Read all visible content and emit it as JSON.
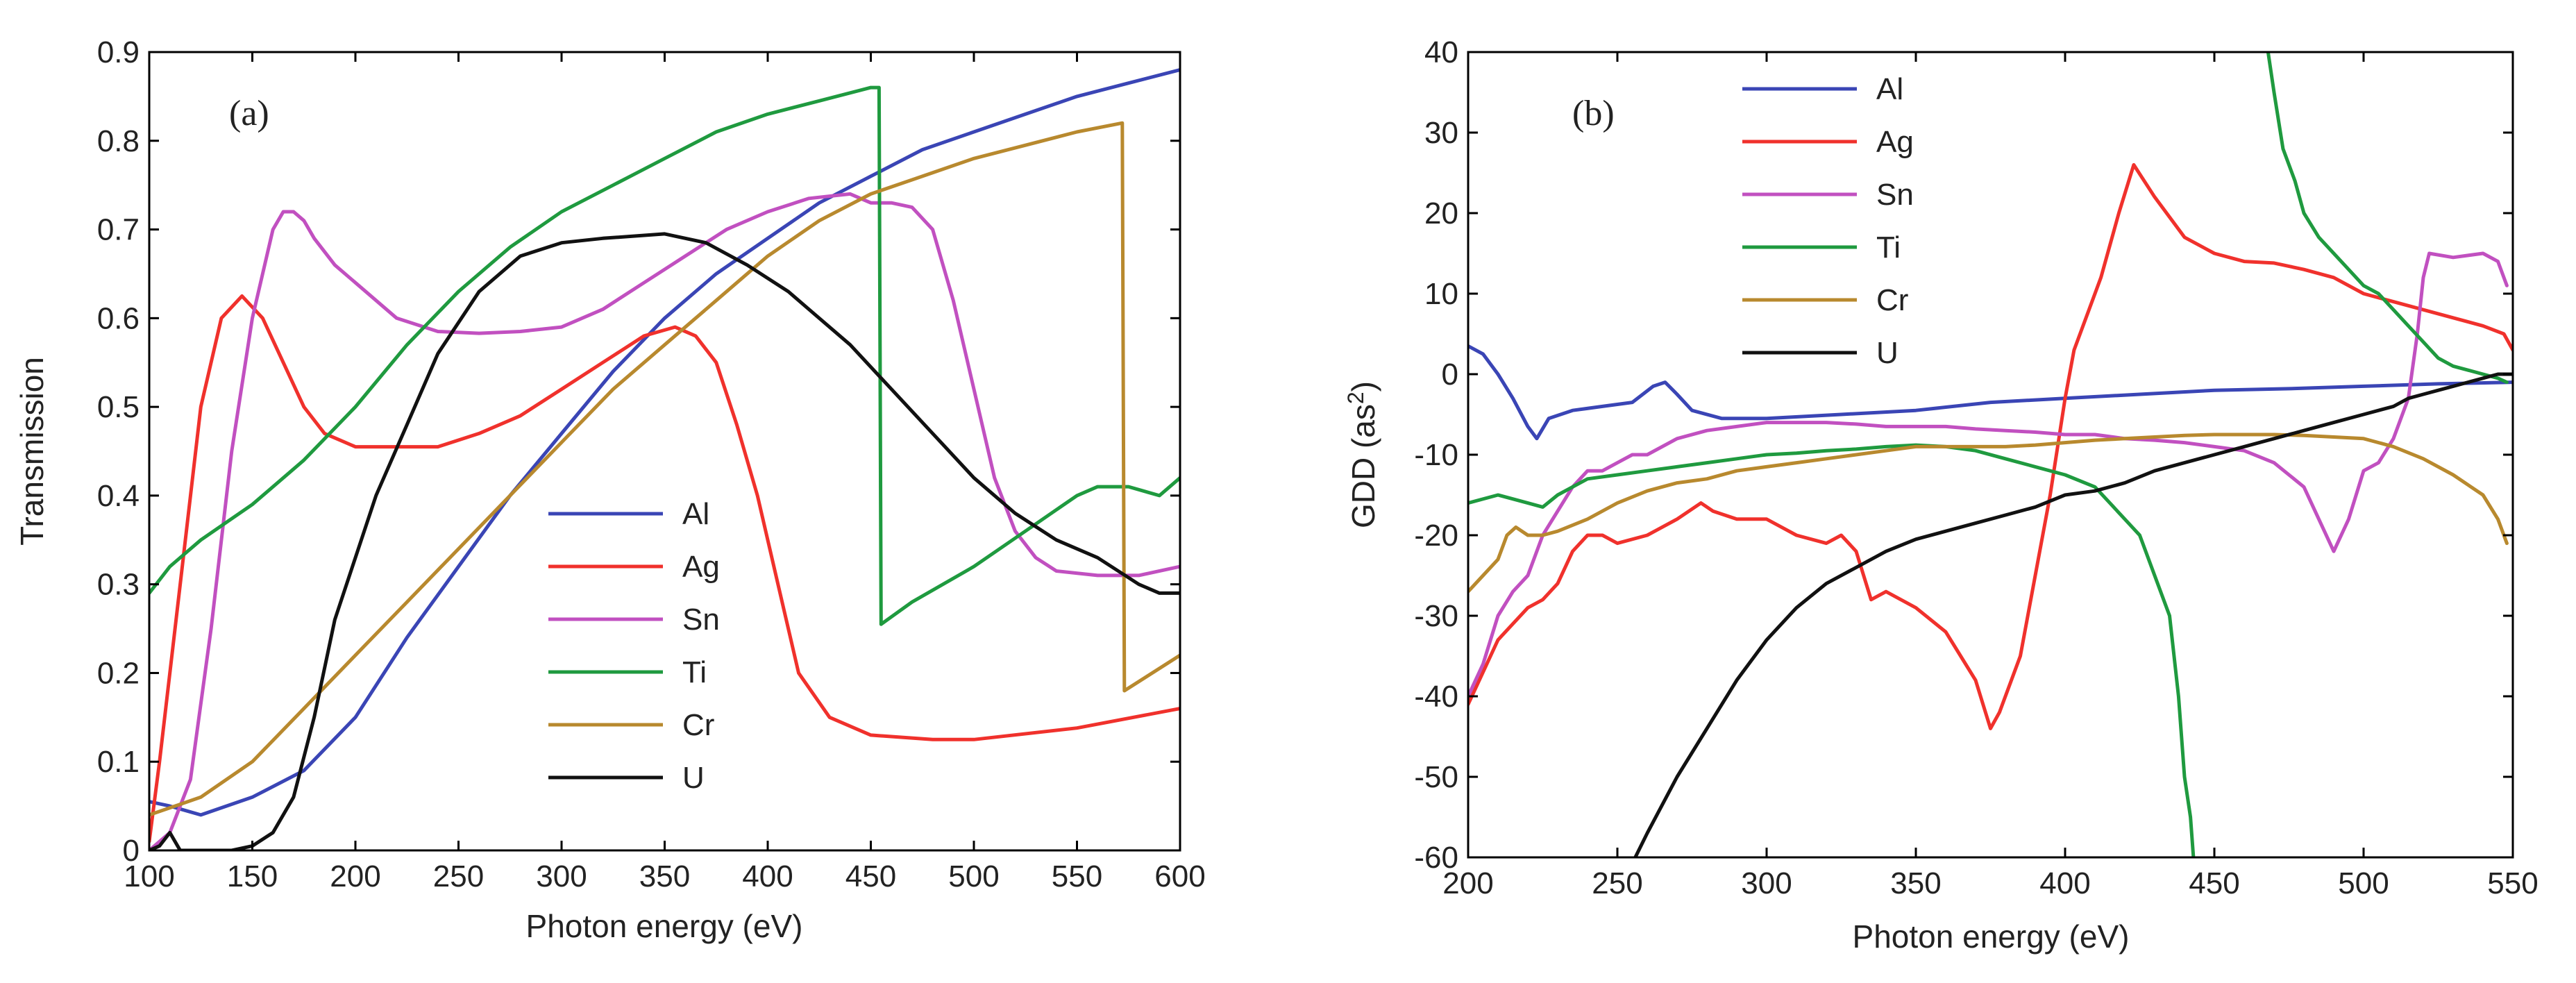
{
  "colors": {
    "Al": "#3a45b5",
    "Ag": "#f0312c",
    "Sn": "#c150c0",
    "Ti": "#1f9a3f",
    "Cr": "#b8892e",
    "U": "#111111"
  },
  "chart_data": [
    {
      "type": "line",
      "panel_label": "(a)",
      "xlabel": "Photon energy (eV)",
      "ylabel": "Transmission",
      "xlim": [
        100,
        600
      ],
      "ylim": [
        0,
        0.9
      ],
      "xticks": [
        "100",
        "150",
        "200",
        "250",
        "300",
        "350",
        "400",
        "450",
        "500",
        "550",
        "600"
      ],
      "yticks": [
        "0",
        "0.1",
        "0.2",
        "0.3",
        "0.4",
        "0.5",
        "0.6",
        "0.7",
        "0.8",
        "0.9"
      ],
      "legend": [
        "Al",
        "Ag",
        "Sn",
        "Ti",
        "Cr",
        "U"
      ],
      "legend_position": "lower-center",
      "series": [
        {
          "name": "Al",
          "x": [
            100,
            110,
            125,
            150,
            175,
            200,
            225,
            250,
            275,
            300,
            325,
            350,
            375,
            400,
            425,
            450,
            475,
            500,
            525,
            550,
            575,
            600
          ],
          "y": [
            0.055,
            0.05,
            0.04,
            0.06,
            0.09,
            0.15,
            0.24,
            0.32,
            0.4,
            0.47,
            0.54,
            0.6,
            0.65,
            0.69,
            0.73,
            0.76,
            0.79,
            0.81,
            0.83,
            0.85,
            0.865,
            0.88
          ]
        },
        {
          "name": "Ag",
          "x": [
            100,
            105,
            115,
            125,
            135,
            145,
            155,
            165,
            175,
            185,
            200,
            210,
            220,
            230,
            240,
            260,
            280,
            300,
            320,
            340,
            355,
            365,
            375,
            385,
            395,
            405,
            415,
            430,
            450,
            480,
            500,
            550,
            600
          ],
          "y": [
            0.01,
            0.1,
            0.3,
            0.5,
            0.6,
            0.625,
            0.6,
            0.55,
            0.5,
            0.47,
            0.455,
            0.455,
            0.455,
            0.455,
            0.455,
            0.47,
            0.49,
            0.52,
            0.55,
            0.58,
            0.59,
            0.58,
            0.55,
            0.48,
            0.4,
            0.3,
            0.2,
            0.15,
            0.13,
            0.125,
            0.125,
            0.138,
            0.16
          ]
        },
        {
          "name": "Sn",
          "x": [
            100,
            110,
            120,
            130,
            140,
            150,
            160,
            165,
            170,
            175,
            180,
            190,
            200,
            220,
            240,
            260,
            280,
            300,
            320,
            340,
            360,
            380,
            400,
            420,
            440,
            450,
            460,
            470,
            480,
            490,
            500,
            510,
            520,
            530,
            540,
            560,
            580,
            600
          ],
          "y": [
            0.0,
            0.02,
            0.08,
            0.25,
            0.45,
            0.6,
            0.7,
            0.72,
            0.72,
            0.71,
            0.69,
            0.66,
            0.64,
            0.6,
            0.585,
            0.583,
            0.585,
            0.59,
            0.61,
            0.64,
            0.67,
            0.7,
            0.72,
            0.735,
            0.74,
            0.73,
            0.73,
            0.725,
            0.7,
            0.62,
            0.52,
            0.42,
            0.36,
            0.33,
            0.315,
            0.31,
            0.31,
            0.32
          ]
        },
        {
          "name": "Ti",
          "x": [
            100,
            110,
            125,
            150,
            175,
            200,
            225,
            250,
            275,
            300,
            325,
            350,
            375,
            400,
            425,
            450,
            454,
            455,
            470,
            500,
            525,
            550,
            560,
            575,
            590,
            600
          ],
          "y": [
            0.29,
            0.32,
            0.35,
            0.39,
            0.44,
            0.5,
            0.57,
            0.63,
            0.68,
            0.72,
            0.75,
            0.78,
            0.81,
            0.83,
            0.845,
            0.86,
            0.86,
            0.255,
            0.28,
            0.32,
            0.36,
            0.4,
            0.41,
            0.41,
            0.4,
            0.42
          ]
        },
        {
          "name": "Cr",
          "x": [
            100,
            125,
            150,
            175,
            200,
            225,
            250,
            275,
            300,
            325,
            350,
            375,
            400,
            425,
            450,
            475,
            500,
            525,
            550,
            572,
            573,
            600
          ],
          "y": [
            0.04,
            0.06,
            0.1,
            0.16,
            0.22,
            0.28,
            0.34,
            0.4,
            0.46,
            0.52,
            0.57,
            0.62,
            0.67,
            0.71,
            0.74,
            0.76,
            0.78,
            0.795,
            0.81,
            0.82,
            0.18,
            0.22
          ]
        },
        {
          "name": "U",
          "x": [
            100,
            105,
            110,
            115,
            120,
            140,
            150,
            160,
            170,
            180,
            190,
            200,
            210,
            225,
            240,
            260,
            280,
            300,
            320,
            350,
            370,
            390,
            410,
            420,
            440,
            460,
            480,
            500,
            520,
            540,
            560,
            580,
            590,
            600
          ],
          "y": [
            0.0,
            0.005,
            0.02,
            0.0,
            0.0,
            0.0,
            0.005,
            0.02,
            0.06,
            0.15,
            0.26,
            0.33,
            0.4,
            0.48,
            0.56,
            0.63,
            0.67,
            0.685,
            0.69,
            0.695,
            0.685,
            0.66,
            0.63,
            0.61,
            0.57,
            0.52,
            0.47,
            0.42,
            0.38,
            0.35,
            0.33,
            0.3,
            0.29,
            0.29
          ]
        }
      ]
    },
    {
      "type": "line",
      "panel_label": "(b)",
      "xlabel": "Photon energy (eV)",
      "ylabel_prefix": "GDD (as",
      "ylabel_sup": "2",
      "ylabel_suffix": ")",
      "xlim": [
        200,
        550
      ],
      "ylim": [
        -60,
        40
      ],
      "xticks": [
        "200",
        "250",
        "300",
        "350",
        "400",
        "450",
        "500",
        "550"
      ],
      "yticks": [
        "-60",
        "-50",
        "-40",
        "-30",
        "-20",
        "-10",
        "0",
        "10",
        "20",
        "30",
        "40"
      ],
      "legend": [
        "Al",
        "Ag",
        "Sn",
        "Ti",
        "Cr",
        "U"
      ],
      "legend_position": "upper-left",
      "series": [
        {
          "name": "Al",
          "x": [
            200,
            205,
            210,
            215,
            220,
            223,
            227,
            235,
            245,
            255,
            262,
            266,
            270,
            275,
            285,
            300,
            325,
            350,
            375,
            400,
            425,
            450,
            475,
            500,
            525,
            550
          ],
          "y": [
            3.5,
            2.5,
            0,
            -3,
            -6.5,
            -8,
            -5.5,
            -4.5,
            -4,
            -3.5,
            -1.5,
            -1,
            -2.5,
            -4.5,
            -5.5,
            -5.5,
            -5,
            -4.5,
            -3.5,
            -3,
            -2.5,
            -2,
            -1.8,
            -1.5,
            -1.2,
            -1
          ]
        },
        {
          "name": "Ag",
          "x": [
            200,
            205,
            210,
            215,
            220,
            225,
            230,
            235,
            240,
            245,
            250,
            260,
            270,
            278,
            282,
            290,
            300,
            310,
            320,
            325,
            330,
            335,
            340,
            350,
            360,
            365,
            370,
            375,
            378,
            385,
            390,
            395,
            400,
            403,
            408,
            412,
            418,
            423,
            430,
            440,
            450,
            460,
            470,
            480,
            490,
            500,
            510,
            520,
            530,
            540,
            547,
            550
          ],
          "y": [
            -41,
            -37,
            -33,
            -31,
            -29,
            -28,
            -26,
            -22,
            -20,
            -20,
            -21,
            -20,
            -18,
            -16,
            -17,
            -18,
            -18,
            -20,
            -21,
            -20,
            -22,
            -28,
            -27,
            -29,
            -32,
            -35,
            -38,
            -44,
            -42,
            -35,
            -25,
            -15,
            -3,
            3,
            8,
            12,
            20,
            26,
            22,
            17,
            15,
            14,
            13.8,
            13,
            12,
            10,
            9,
            8,
            7,
            6,
            5,
            3
          ]
        },
        {
          "name": "Sn",
          "x": [
            200,
            205,
            210,
            215,
            220,
            225,
            230,
            235,
            240,
            245,
            250,
            255,
            260,
            270,
            280,
            290,
            300,
            310,
            320,
            330,
            340,
            350,
            360,
            370,
            380,
            390,
            400,
            410,
            420,
            430,
            440,
            450,
            460,
            470,
            480,
            485,
            490,
            495,
            500,
            505,
            510,
            515,
            518,
            520,
            522,
            530,
            540,
            545,
            548
          ],
          "y": [
            -40,
            -36,
            -30,
            -27,
            -25,
            -20,
            -17,
            -14,
            -12,
            -12,
            -11,
            -10,
            -10,
            -8,
            -7,
            -6.5,
            -6,
            -6,
            -6,
            -6.2,
            -6.5,
            -6.5,
            -6.5,
            -6.8,
            -7,
            -7.2,
            -7.5,
            -7.5,
            -8,
            -8.2,
            -8.5,
            -9,
            -9.5,
            -11,
            -14,
            -18,
            -22,
            -18,
            -12,
            -11,
            -8,
            -3,
            5,
            12,
            15,
            14.5,
            15,
            14,
            11
          ]
        },
        {
          "name": "Ti",
          "x": [
            200,
            210,
            220,
            225,
            230,
            240,
            250,
            260,
            270,
            280,
            290,
            300,
            310,
            320,
            330,
            340,
            350,
            360,
            370,
            380,
            390,
            400,
            410,
            415,
            420,
            425,
            430,
            435,
            438,
            440,
            442,
            443
          ],
          "y": [
            -16,
            -15,
            -16,
            -16.5,
            -15,
            -13,
            -12.5,
            -12,
            -11.5,
            -11,
            -10.5,
            -10,
            -9.8,
            -9.5,
            -9.3,
            -9,
            -8.8,
            -9,
            -9.5,
            -10.5,
            -11.5,
            -12.5,
            -14,
            -16,
            -18,
            -20,
            -25,
            -30,
            -40,
            -50,
            -55,
            -60
          ]
        },
        {
          "name": "Ti",
          "x": [
            468,
            470,
            473,
            477,
            480,
            485,
            490,
            495,
            500,
            505,
            510,
            515,
            520,
            525,
            530,
            535,
            540,
            545,
            548
          ],
          "y": [
            40,
            35,
            28,
            24,
            20,
            17,
            15,
            13,
            11,
            10,
            8,
            6,
            4,
            2,
            1,
            0.5,
            0,
            -0.5,
            -1
          ]
        },
        {
          "name": "Cr",
          "x": [
            200,
            205,
            210,
            213,
            216,
            220,
            225,
            230,
            240,
            250,
            260,
            270,
            280,
            290,
            300,
            310,
            320,
            330,
            340,
            350,
            360,
            370,
            380,
            390,
            400,
            410,
            420,
            430,
            440,
            450,
            460,
            470,
            480,
            490,
            500,
            510,
            520,
            530,
            540,
            545,
            548
          ],
          "y": [
            -27,
            -25,
            -23,
            -20,
            -19,
            -20,
            -20,
            -19.5,
            -18,
            -16,
            -14.5,
            -13.5,
            -13,
            -12,
            -11.5,
            -11,
            -10.5,
            -10,
            -9.5,
            -9,
            -9,
            -9,
            -9,
            -8.8,
            -8.5,
            -8.2,
            -8,
            -7.8,
            -7.6,
            -7.5,
            -7.5,
            -7.5,
            -7.6,
            -7.8,
            -8,
            -9,
            -10.5,
            -12.5,
            -15,
            -18,
            -21
          ]
        },
        {
          "name": "U",
          "x": [
            256,
            260,
            270,
            280,
            290,
            300,
            310,
            320,
            330,
            340,
            350,
            360,
            370,
            380,
            390,
            400,
            410,
            420,
            430,
            440,
            450,
            460,
            470,
            480,
            490,
            500,
            510,
            515,
            520,
            525,
            530,
            540,
            545,
            550
          ],
          "y": [
            -60,
            -57,
            -50,
            -44,
            -38,
            -33,
            -29,
            -26,
            -24,
            -22,
            -20.5,
            -19.5,
            -18.5,
            -17.5,
            -16.5,
            -15,
            -14.5,
            -13.5,
            -12,
            -11,
            -10,
            -9,
            -8,
            -7,
            -6,
            -5,
            -4,
            -3,
            -2.5,
            -2,
            -1.5,
            -0.5,
            0,
            0
          ]
        }
      ]
    }
  ]
}
